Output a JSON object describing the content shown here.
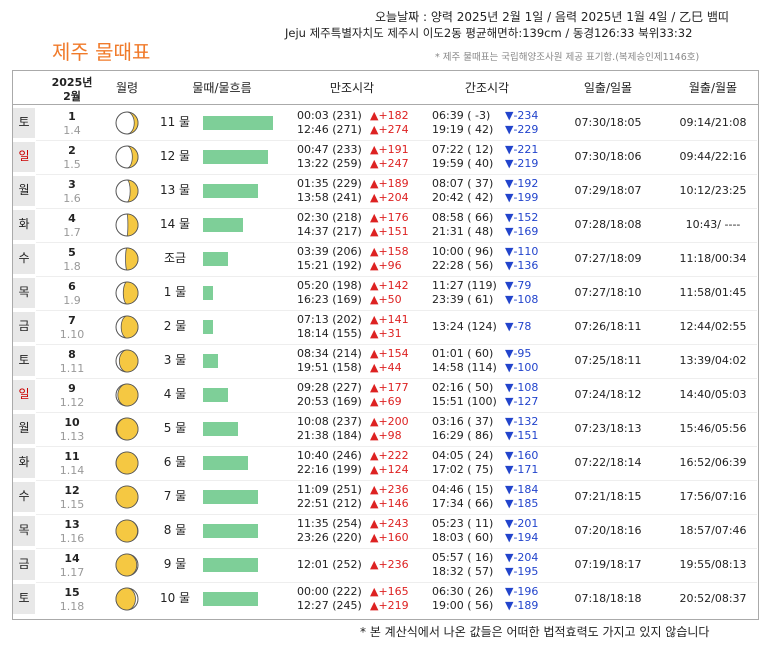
{
  "header": {
    "today": "오늘날짜 : 양력 2025년 2월 1일 / 음력 2025년 1월 4일 / 乙巳 뱀띠",
    "location": "Jeju 제주특별자치도 제주시 이도2동 평균해면하:139cm / 동경126:33 북위33:32",
    "title": "제주 물때표",
    "note": "* 제주 물때표는 국립해양조사원 제공 표기함.(복제승인제1146호)"
  },
  "table": {
    "year": "2025년",
    "month": "2월",
    "columns": [
      "월령",
      "물때/물흐름",
      "만조시각",
      "간조시각",
      "일출/일몰",
      "월출/월몰"
    ],
    "flow_color": "#7ecf98",
    "rows": [
      {
        "weekday": "토",
        "day": "1",
        "lunar": "1.4",
        "tide": "11 물",
        "flow": 70,
        "high": [
          {
            "t": "00:03 (231)",
            "d": "▲+182"
          },
          {
            "t": "12:46 (271)",
            "d": "▲+274"
          }
        ],
        "low": [
          {
            "t": "06:39 ( -3)",
            "d": "▼-234"
          },
          {
            "t": "19:19 ( 42)",
            "d": "▼-229"
          }
        ],
        "sun": "07:30/18:05",
        "moon": "09:14/21:08"
      },
      {
        "weekday": "일",
        "color": "#cc0000",
        "day": "2",
        "lunar": "1.5",
        "tide": "12 물",
        "flow": 65,
        "high": [
          {
            "t": "00:47 (233)",
            "d": "▲+191"
          },
          {
            "t": "13:22 (259)",
            "d": "▲+247"
          }
        ],
        "low": [
          {
            "t": "07:22 ( 12)",
            "d": "▼-221"
          },
          {
            "t": "19:59 ( 40)",
            "d": "▼-219"
          }
        ],
        "sun": "07:30/18:06",
        "moon": "09:44/22:16"
      },
      {
        "weekday": "월",
        "day": "3",
        "lunar": "1.6",
        "tide": "13 물",
        "flow": 55,
        "high": [
          {
            "t": "01:35 (229)",
            "d": "▲+189"
          },
          {
            "t": "13:58 (241)",
            "d": "▲+204"
          }
        ],
        "low": [
          {
            "t": "08:07 ( 37)",
            "d": "▼-192"
          },
          {
            "t": "20:42 ( 42)",
            "d": "▼-199"
          }
        ],
        "sun": "07:29/18:07",
        "moon": "10:12/23:25"
      },
      {
        "weekday": "화",
        "day": "4",
        "lunar": "1.7",
        "tide": "14 물",
        "flow": 40,
        "high": [
          {
            "t": "02:30 (218)",
            "d": "▲+176"
          },
          {
            "t": "14:37 (217)",
            "d": "▲+151"
          }
        ],
        "low": [
          {
            "t": "08:58 ( 66)",
            "d": "▼-152"
          },
          {
            "t": "21:31 ( 48)",
            "d": "▼-169"
          }
        ],
        "sun": "07:28/18:08",
        "moon": "10:43/ ----"
      },
      {
        "weekday": "수",
        "day": "5",
        "lunar": "1.8",
        "tide": "조금",
        "flow": 25,
        "high": [
          {
            "t": "03:39 (206)",
            "d": "▲+158"
          },
          {
            "t": "15:21 (192)",
            "d": "▲+96"
          }
        ],
        "low": [
          {
            "t": "10:00 ( 96)",
            "d": "▼-110"
          },
          {
            "t": "22:28 ( 56)",
            "d": "▼-136"
          }
        ],
        "sun": "07:27/18:09",
        "moon": "11:18/00:34"
      },
      {
        "weekday": "목",
        "day": "6",
        "lunar": "1.9",
        "tide": "1 물",
        "flow": 10,
        "high": [
          {
            "t": "05:20 (198)",
            "d": "▲+142"
          },
          {
            "t": "16:23 (169)",
            "d": "▲+50"
          }
        ],
        "low": [
          {
            "t": "11:27 (119)",
            "d": "▼-79"
          },
          {
            "t": "23:39 ( 61)",
            "d": "▼-108"
          }
        ],
        "sun": "07:27/18:10",
        "moon": "11:58/01:45"
      },
      {
        "weekday": "금",
        "day": "7",
        "lunar": "1.10",
        "tide": "2 물",
        "flow": 10,
        "high": [
          {
            "t": "07:13 (202)",
            "d": "▲+141"
          },
          {
            "t": "18:14 (155)",
            "d": "▲+31"
          }
        ],
        "low": [
          {
            "t": "13:24 (124)",
            "d": "▼-78"
          }
        ],
        "sun": "07:26/18:11",
        "moon": "12:44/02:55"
      },
      {
        "weekday": "토",
        "day": "8",
        "lunar": "1.11",
        "tide": "3 물",
        "flow": 15,
        "high": [
          {
            "t": "08:34 (214)",
            "d": "▲+154"
          },
          {
            "t": "19:51 (158)",
            "d": "▲+44"
          }
        ],
        "low": [
          {
            "t": "01:01 ( 60)",
            "d": "▼-95"
          },
          {
            "t": "14:58 (114)",
            "d": "▼-100"
          }
        ],
        "sun": "07:25/18:11",
        "moon": "13:39/04:02"
      },
      {
        "weekday": "일",
        "color": "#cc0000",
        "day": "9",
        "lunar": "1.12",
        "tide": "4 물",
        "flow": 25,
        "high": [
          {
            "t": "09:28 (227)",
            "d": "▲+177"
          },
          {
            "t": "20:53 (169)",
            "d": "▲+69"
          }
        ],
        "low": [
          {
            "t": "02:16 ( 50)",
            "d": "▼-108"
          },
          {
            "t": "15:51 (100)",
            "d": "▼-127"
          }
        ],
        "sun": "07:24/18:12",
        "moon": "14:40/05:03"
      },
      {
        "weekday": "월",
        "day": "10",
        "lunar": "1.13",
        "tide": "5 물",
        "flow": 35,
        "high": [
          {
            "t": "10:08 (237)",
            "d": "▲+200"
          },
          {
            "t": "21:38 (184)",
            "d": "▲+98"
          }
        ],
        "low": [
          {
            "t": "03:16 ( 37)",
            "d": "▼-132"
          },
          {
            "t": "16:29 ( 86)",
            "d": "▼-151"
          }
        ],
        "sun": "07:23/18:13",
        "moon": "15:46/05:56"
      },
      {
        "weekday": "화",
        "day": "11",
        "lunar": "1.14",
        "tide": "6 물",
        "flow": 45,
        "high": [
          {
            "t": "10:40 (246)",
            "d": "▲+222"
          },
          {
            "t": "22:16 (199)",
            "d": "▲+124"
          }
        ],
        "low": [
          {
            "t": "04:05 ( 24)",
            "d": "▼-160"
          },
          {
            "t": "17:02 ( 75)",
            "d": "▼-171"
          }
        ],
        "sun": "07:22/18:14",
        "moon": "16:52/06:39"
      },
      {
        "weekday": "수",
        "day": "12",
        "lunar": "1.15",
        "tide": "7 물",
        "flow": 55,
        "high": [
          {
            "t": "11:09 (251)",
            "d": "▲+236"
          },
          {
            "t": "22:51 (212)",
            "d": "▲+146"
          }
        ],
        "low": [
          {
            "t": "04:46 ( 15)",
            "d": "▼-184"
          },
          {
            "t": "17:34 ( 66)",
            "d": "▼-185"
          }
        ],
        "sun": "07:21/18:15",
        "moon": "17:56/07:16"
      },
      {
        "weekday": "목",
        "day": "13",
        "lunar": "1.16",
        "tide": "8 물",
        "flow": 55,
        "high": [
          {
            "t": "11:35 (254)",
            "d": "▲+243"
          },
          {
            "t": "23:26 (220)",
            "d": "▲+160"
          }
        ],
        "low": [
          {
            "t": "05:23 ( 11)",
            "d": "▼-201"
          },
          {
            "t": "18:03 ( 60)",
            "d": "▼-194"
          }
        ],
        "sun": "07:20/18:16",
        "moon": "18:57/07:46"
      },
      {
        "weekday": "금",
        "day": "14",
        "lunar": "1.17",
        "tide": "9 물",
        "flow": 55,
        "high": [
          {
            "t": "12:01 (252)",
            "d": "▲+236"
          }
        ],
        "low": [
          {
            "t": "05:57 ( 16)",
            "d": "▼-204"
          },
          {
            "t": "18:32 ( 57)",
            "d": "▼-195"
          }
        ],
        "sun": "07:19/18:17",
        "moon": "19:55/08:13"
      },
      {
        "weekday": "토",
        "day": "15",
        "lunar": "1.18",
        "tide": "10 물",
        "flow": 55,
        "high": [
          {
            "t": "00:00 (222)",
            "d": "▲+165"
          },
          {
            "t": "12:27 (245)",
            "d": "▲+219"
          }
        ],
        "low": [
          {
            "t": "06:30 ( 26)",
            "d": "▼-196"
          },
          {
            "t": "19:00 ( 56)",
            "d": "▼-189"
          }
        ],
        "sun": "07:18/18:18",
        "moon": "20:52/08:37"
      }
    ]
  },
  "footer": "* 본 계산식에서 나온 값들은 어떠한 법적효력도 가지고 있지 않습니다"
}
